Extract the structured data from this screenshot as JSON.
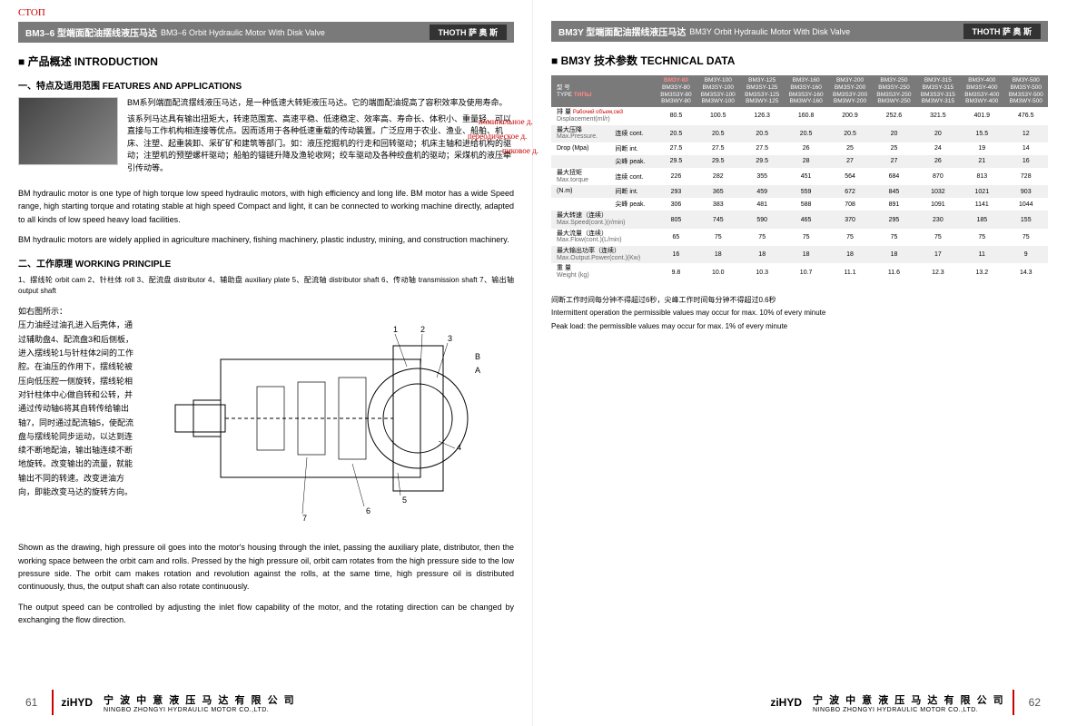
{
  "annotations": {
    "stop": "СТОП",
    "displacement_ru": "Рабочий объем,см3",
    "nominal": "номинальное д.",
    "periodic": "переодическое д.",
    "peak": "пиковое д.",
    "type_ru": "ТИПЫ"
  },
  "left": {
    "titlebar_main": "BM3–6 型端面配油摆线液压马达",
    "titlebar_sub": "BM3–6 Orbit Hydraulic Motor With Disk Valve",
    "brand": "THOTH 萨 奥 斯",
    "section1": "产品概述 INTRODUCTION",
    "subsection1": "一、特点及适用范围 FEATURES AND APPLICATIONS",
    "cn_intro1": "BM系列端面配流摆线液压马达，是一种低速大转矩液压马达。它的端面配油提高了容积效率及使用寿命。",
    "cn_intro2": "该系列马达具有输出扭矩大，转速范围宽、高速平稳、低速稳定、效率高、寿命长、体积小、重量轻、可以直接与工作机构相连接等优点。因而适用于各种低速重载的传动装置。广泛应用于农业、渔业、船舶、机床、注塑、起重装卸、采矿矿和建筑等部门。如：液压挖掘机的行走和回转驱动；机床主轴和进给机构的驱动；注塑机的预塑螺杆驱动；船舶的锚链升降及渔轮收网；绞车驱动及各种绞盘机的驱动；采煤机的液压牵引传动等。",
    "en_intro1": "BM hydraulic motor is one type of high torque low speed hydraulic motors, with high efficiency and long life. BM motor has a wide Speed range, high starting torque and rotating stable at high speed Compact and light, it can be connected to working machine directly, adapted to all kinds of low speed heavy load facilities.",
    "en_intro2": "BM hydraulic motors are widely applied in agriculture machinery, fishing machinery, plastic industry, mining, and construction machinery.",
    "subsection2": "二、工作原理 WORKING PRINCIPLE",
    "legend": "1、摆线轮  orbit cam  2、针柱体 roll  3、配流盘 distributor  4、辅助盘 auxiliary plate  5、配流轴 distributor shaft  6、传动轴 transmission shaft  7、输出轴 output shaft",
    "principle_cn_head": "如右图所示：",
    "principle_cn": "压力油经过油孔进入后壳体，通过辅助盘4、配流盘3和后侧板，进入摆线轮1与针柱体2间的工作腔。在油压的作用下，摆线轮被压向低压腔一侧旋转，摆线轮相对针柱体中心做自转和公转，并通过传动轴6将其自转传给输出轴7，同时通过配流轴5，使配流盘与摆线轮同步运动，以达到连续不断地配油，输出轴连续不断地旋转。改变输出的流量，就能输出不同的转速。改变进油方向，即能改变马达的旋转方向。",
    "en_principle1": "Shown as the drawing, high pressure oil goes into the motor's housing through the inlet, passing the auxiliary plate, distributor, then the working space between the orbit cam and rolls. Pressed by the high pressure oil, orbit cam rotates from the high pressure side to the low pressure side. The orbit cam makes rotation and revolution against the rolls, at the same time, high pressure oil is distributed continuously, thus, the output shaft can also rotate continuously.",
    "en_principle2": "The output speed can be controlled by adjusting the inlet flow capability of the motor, and the rotating direction can be changed by exchanging the flow direction.",
    "page_num": "61"
  },
  "right": {
    "titlebar_main": "BM3Y 型端面配油摆线液压马达",
    "titlebar_sub": "BM3Y Orbit Hydraulic Motor With Disk Valve",
    "brand": "THOTH 萨 奥 斯",
    "section1": "BM3Y 技术参数 TECHNICAL DATA",
    "table": {
      "header_first": "型 号\nTYPE",
      "columns": [
        [
          "BM3Y-80",
          "BM3SY-80",
          "BM3S3Y-80",
          "BM3WY-80"
        ],
        [
          "BM3Y-100",
          "BM3SY-100",
          "BM3S3Y-100",
          "BM3WY-100"
        ],
        [
          "BM3Y-125",
          "BM3SY-125",
          "BM3S3Y-125",
          "BM3WY-125"
        ],
        [
          "BM3Y-160",
          "BM3SY-160",
          "BM3S3Y-160",
          "BM3WY-160"
        ],
        [
          "BM3Y-200",
          "BM3SY-200",
          "BM3S3Y-200",
          "BM3WY-200"
        ],
        [
          "BM3Y-250",
          "BM3SY-250",
          "BM3S3Y-250",
          "BM3WY-250"
        ],
        [
          "BM3Y-315",
          "BM3SY-315",
          "BM3S3Y-315",
          "BM3WY-315"
        ],
        [
          "BM3Y-400",
          "BM3SY-400",
          "BM3S3Y-400",
          "BM3WY-400"
        ],
        [
          "BM3Y-500",
          "BM3SY-500",
          "BM3S3Y-500",
          "BM3WY-500"
        ]
      ],
      "rows": [
        {
          "label": "排 量",
          "label2": "Displacement(ml/r)",
          "sub": "",
          "v": [
            "80.5",
            "100.5",
            "126.3",
            "160.8",
            "200.9",
            "252.6",
            "321.5",
            "401.9",
            "476.5"
          ]
        },
        {
          "label": "最大压降",
          "label2": "Max.Pressure.",
          "sub": "连续 cont.",
          "v": [
            "20.5",
            "20.5",
            "20.5",
            "20.5",
            "20.5",
            "20",
            "20",
            "15.5",
            "12"
          ]
        },
        {
          "label": "Drop (Mpa)",
          "label2": "",
          "sub": "间断 int.",
          "v": [
            "27.5",
            "27.5",
            "27.5",
            "26",
            "25",
            "25",
            "24",
            "19",
            "14"
          ]
        },
        {
          "label": "",
          "label2": "",
          "sub": "尖峰 peak.",
          "v": [
            "29.5",
            "29.5",
            "29.5",
            "28",
            "27",
            "27",
            "26",
            "21",
            "16"
          ]
        },
        {
          "label": "最大扭矩",
          "label2": "Max.torque",
          "sub": "连续 cont.",
          "v": [
            "226",
            "282",
            "355",
            "451",
            "564",
            "684",
            "870",
            "813",
            "728"
          ]
        },
        {
          "label": "(N.m)",
          "label2": "",
          "sub": "间断 int.",
          "v": [
            "293",
            "365",
            "459",
            "559",
            "672",
            "845",
            "1032",
            "1021",
            "903"
          ]
        },
        {
          "label": "",
          "label2": "",
          "sub": "尖峰 peak.",
          "v": [
            "306",
            "383",
            "481",
            "588",
            "708",
            "891",
            "1091",
            "1141",
            "1044"
          ]
        },
        {
          "label": "最大转速（连续）",
          "label2": "Max.Speed(cont.)(r/min)",
          "sub": "",
          "v": [
            "805",
            "745",
            "590",
            "465",
            "370",
            "295",
            "230",
            "185",
            "155"
          ]
        },
        {
          "label": "最大流量（连续）",
          "label2": "Max.Flow(cont.)(L/min)",
          "sub": "",
          "v": [
            "65",
            "75",
            "75",
            "75",
            "75",
            "75",
            "75",
            "75",
            "75"
          ]
        },
        {
          "label": "最大输出功率（连续）",
          "label2": "Max.Output.Power(cont.)(Kw)",
          "sub": "",
          "v": [
            "16",
            "18",
            "18",
            "18",
            "18",
            "18",
            "17",
            "11",
            "9"
          ]
        },
        {
          "label": "重 量",
          "label2": "Weight (kg)",
          "sub": "",
          "v": [
            "9.8",
            "10.0",
            "10.3",
            "10.7",
            "11.1",
            "11.6",
            "12.3",
            "13.2",
            "14.3"
          ]
        }
      ]
    },
    "note1": "间断工作时间每分钟不得超过6秒，尖峰工作时间每分钟不得超过0.6秒",
    "note2": "Intermittent operation the permissible values may occur for max. 10% of every minute",
    "note3": "Peak load: the permissible values may occur for max. 1% of every minute",
    "page_num": "62"
  },
  "footer": {
    "logo": "ziHYD",
    "company_cn": "宁 波 中 意 液 压 马 达 有 限 公 司",
    "company_en": "NINGBO ZHONGYI HYDRAULIC MOTOR CO.,LTD."
  }
}
